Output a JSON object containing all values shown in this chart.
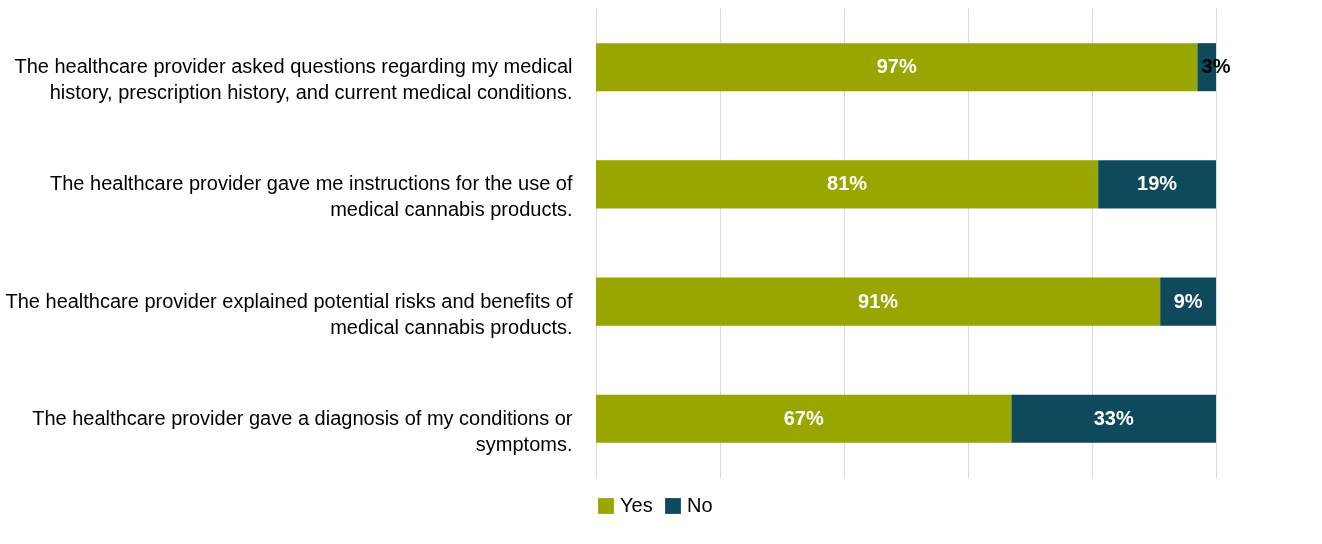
{
  "chart_data": {
    "type": "bar",
    "orientation": "horizontal",
    "stacked": true,
    "categories": [
      "The healthcare provider asked questions regarding my medical history, prescription history, and current medical conditions.",
      "The healthcare provider gave me instructions for the use of medical cannabis products.",
      "The healthcare provider explained potential risks and benefits of medical cannabis products.",
      "The healthcare provider gave a diagnosis of my conditions or symptoms."
    ],
    "series": [
      {
        "name": "Yes",
        "color": "#9aa600",
        "values": [
          97,
          81,
          91,
          67
        ],
        "value_labels": [
          "97%",
          "81%",
          "91%",
          "67%"
        ]
      },
      {
        "name": "No",
        "color": "#0f4a5c",
        "values": [
          3,
          19,
          9,
          33
        ],
        "value_labels": [
          "3%",
          "19%",
          "9%",
          "33%"
        ]
      }
    ],
    "xlim": [
      0,
      100
    ],
    "xticks": [
      {
        "value": 0,
        "label": null
      },
      {
        "value": 20,
        "label": null
      },
      {
        "value": 40,
        "label": null
      },
      {
        "value": 60,
        "label": null
      },
      {
        "value": 80,
        "label": null
      },
      {
        "value": 100,
        "label": null
      }
    ],
    "tick_labels": "y",
    "grid": "x",
    "legend": "bottom"
  }
}
